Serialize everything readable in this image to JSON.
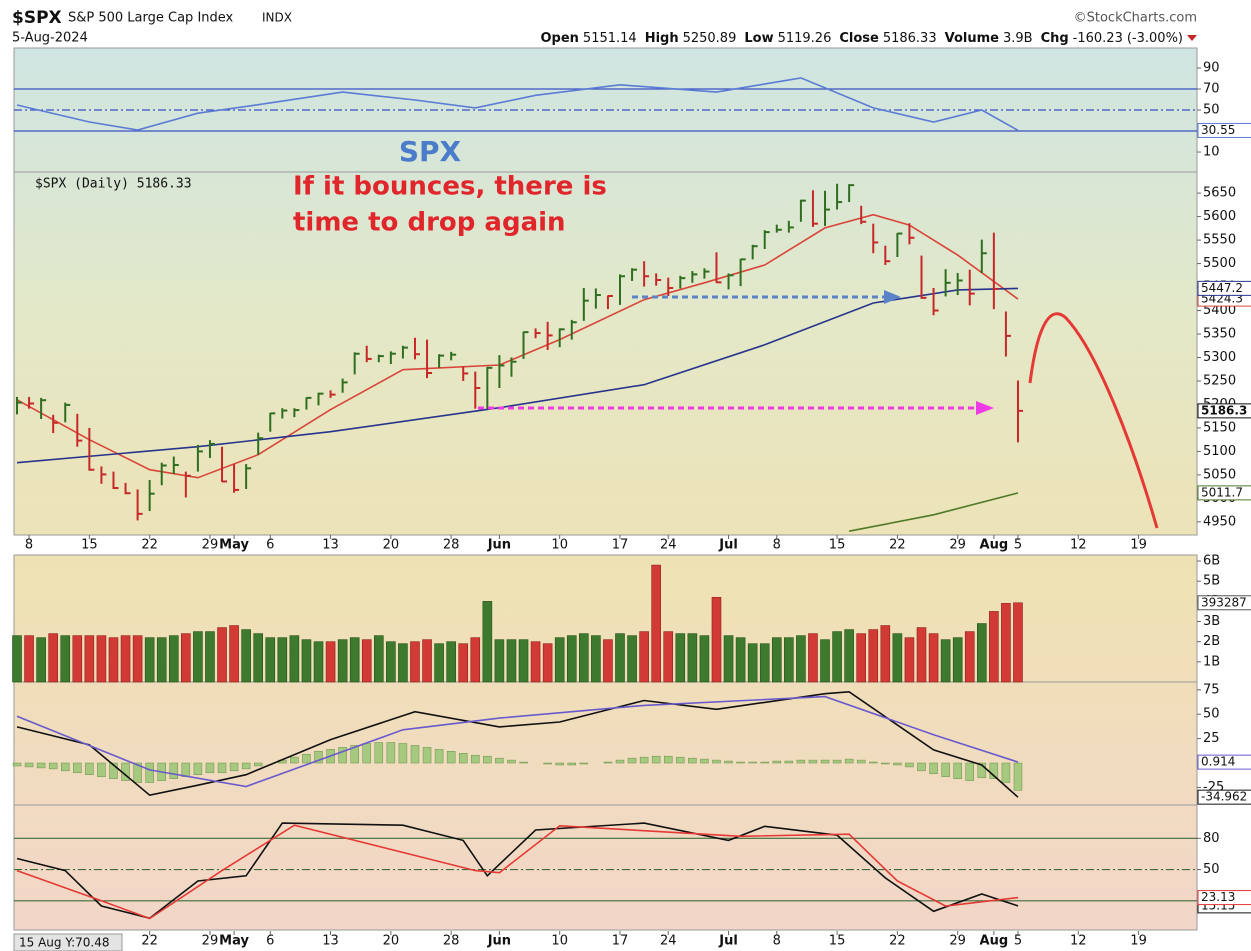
{
  "header": {
    "symbol": "$SPX",
    "name": "S&P 500 Large Cap Index",
    "exchange": "INDX",
    "source": "©StockCharts.com",
    "date": "5-Aug-2024",
    "open_label": "Open",
    "open": 5151.14,
    "high_label": "High",
    "high": 5250.89,
    "low_label": "Low",
    "low": 5119.26,
    "close_label": "Close",
    "close": 5186.33,
    "volume_label": "Volume",
    "volume": "3.9B",
    "chg_label": "Chg",
    "chg": -160.23,
    "chg_pct": "(-3.00%)"
  },
  "chart_data": [
    {
      "type": "line",
      "ylim": [
        -9,
        109
      ],
      "yticks": [
        10,
        50,
        70,
        90
      ],
      "levels": [
        {
          "value": 70,
          "style": "solid"
        },
        {
          "value": 30,
          "style": "solid"
        },
        {
          "value": 50,
          "style": "dashed"
        }
      ],
      "level_color": "#3b4fc4",
      "series": [
        {
          "color": "#5b7bd5",
          "last_label": "30.55",
          "x": [
            "2024-04-05",
            "2024-04-15",
            "2024-04-19",
            "2024-04-26",
            "2024-05-03",
            "2024-05-14",
            "2024-05-22",
            "2024-05-30",
            "2024-06-06",
            "2024-06-17",
            "2024-06-28",
            "2024-07-10",
            "2024-07-12",
            "2024-07-18",
            "2024-07-25",
            "2024-07-31",
            "2024-08-05"
          ],
          "values": [
            54.8,
            38.6,
            31,
            47,
            55,
            67,
            59.5,
            52,
            64,
            74,
            67,
            80.5,
            71,
            52,
            38.6,
            50,
            30.55
          ]
        }
      ]
    },
    {
      "type": "ohlc",
      "legend": "$SPX (Daily) 5186.33",
      "annotations": [
        "SPX",
        "If it bounces, there is",
        "time to drop again"
      ],
      "up_color": "#2f6e1f",
      "down_color": "#c62828",
      "last_label": "5186.3",
      "ylim": [
        4922,
        5695
      ],
      "yticks": [
        4950,
        5000,
        5050,
        5100,
        5150,
        5200,
        5250,
        5300,
        5350,
        5400,
        5450,
        5500,
        5550,
        5600,
        5650
      ],
      "x": [
        "2024-04-05",
        "2024-04-08",
        "2024-04-09",
        "2024-04-10",
        "2024-04-11",
        "2024-04-12",
        "2024-04-15",
        "2024-04-16",
        "2024-04-17",
        "2024-04-18",
        "2024-04-19",
        "2024-04-22",
        "2024-04-23",
        "2024-04-24",
        "2024-04-25",
        "2024-04-26",
        "2024-04-29",
        "2024-04-30",
        "2024-05-01",
        "2024-05-02",
        "2024-05-03",
        "2024-05-06",
        "2024-05-07",
        "2024-05-08",
        "2024-05-09",
        "2024-05-10",
        "2024-05-13",
        "2024-05-14",
        "2024-05-15",
        "2024-05-16",
        "2024-05-17",
        "2024-05-20",
        "2024-05-21",
        "2024-05-22",
        "2024-05-23",
        "2024-05-24",
        "2024-05-28",
        "2024-05-29",
        "2024-05-30",
        "2024-05-31",
        "2024-06-03",
        "2024-06-04",
        "2024-06-05",
        "2024-06-06",
        "2024-06-07",
        "2024-06-10",
        "2024-06-11",
        "2024-06-12",
        "2024-06-13",
        "2024-06-14",
        "2024-06-17",
        "2024-06-18",
        "2024-06-20",
        "2024-06-21",
        "2024-06-24",
        "2024-06-25",
        "2024-06-26",
        "2024-06-27",
        "2024-06-28",
        "2024-07-01",
        "2024-07-02",
        "2024-07-03",
        "2024-07-05",
        "2024-07-08",
        "2024-07-09",
        "2024-07-10",
        "2024-07-11",
        "2024-07-12",
        "2024-07-15",
        "2024-07-16",
        "2024-07-17",
        "2024-07-18",
        "2024-07-19",
        "2024-07-22",
        "2024-07-23",
        "2024-07-24",
        "2024-07-25",
        "2024-07-26",
        "2024-07-29",
        "2024-07-30",
        "2024-07-31",
        "2024-08-01",
        "2024-08-02",
        "2024-08-05"
      ],
      "high": [
        5216,
        5216,
        5214,
        5178,
        5204,
        5180,
        5150,
        5068,
        5057,
        5033,
        5019,
        5039,
        5076,
        5089,
        5057,
        5114,
        5124,
        5110,
        5073,
        5073,
        5140,
        5182,
        5192,
        5192,
        5215,
        5225,
        5230,
        5255,
        5311,
        5325,
        5306,
        5313,
        5325,
        5342,
        5338,
        5307,
        5312,
        5281,
        5270,
        5280,
        5305,
        5300,
        5355,
        5362,
        5376,
        5362,
        5380,
        5448,
        5447,
        5432,
        5477,
        5490,
        5505,
        5479,
        5470,
        5474,
        5484,
        5490,
        5524,
        5479,
        5510,
        5540,
        5571,
        5583,
        5591,
        5636,
        5656,
        5655,
        5670,
        5669,
        5623,
        5585,
        5538,
        5565,
        5586,
        5517,
        5448,
        5488,
        5480,
        5487,
        5551,
        5566,
        5398,
        5250.89
      ],
      "low": [
        5179,
        5191,
        5169,
        5139,
        5162,
        5110,
        5059,
        5031,
        5020,
        5009,
        4953,
        4973,
        5028,
        5052,
        5002,
        5057,
        5086,
        5035,
        5012,
        5020,
        5093,
        5142,
        5170,
        5173,
        5189,
        5198,
        5214,
        5225,
        5264,
        5290,
        5290,
        5286,
        5298,
        5296,
        5256,
        5278,
        5294,
        5250,
        5191,
        5191,
        5235,
        5259,
        5297,
        5341,
        5316,
        5322,
        5338,
        5378,
        5404,
        5403,
        5412,
        5463,
        5451,
        5453,
        5431,
        5447,
        5459,
        5468,
        5459,
        5445,
        5452,
        5509,
        5531,
        5566,
        5566,
        5589,
        5578,
        5580,
        5615,
        5631,
        5584,
        5522,
        5497,
        5514,
        5541,
        5425,
        5390,
        5430,
        5433,
        5411,
        5480,
        5403,
        5302,
        5119.26
      ],
      "close": [
        5204,
        5202,
        5209,
        5161,
        5199,
        5123,
        5061,
        5051,
        5022,
        5011,
        4967,
        5010,
        5070,
        5071,
        5048,
        5100,
        5116,
        5036,
        5018,
        5064,
        5128,
        5181,
        5187,
        5188,
        5214,
        5223,
        5221,
        5247,
        5308,
        5297,
        5303,
        5308,
        5321,
        5307,
        5267,
        5304,
        5306,
        5266,
        5235,
        5278,
        5283,
        5291,
        5354,
        5352,
        5347,
        5360,
        5375,
        5421,
        5433,
        5431,
        5473,
        5487,
        5473,
        5465,
        5448,
        5469,
        5477,
        5483,
        5460,
        5475,
        5509,
        5537,
        5567,
        5572,
        5577,
        5634,
        5585,
        5615,
        5631,
        5667,
        5589,
        5545,
        5505,
        5564,
        5555,
        5427,
        5400,
        5459,
        5464,
        5436,
        5522,
        5446,
        5346,
        5186.33
      ],
      "overlays": [
        {
          "color": "#d9453a",
          "last_label": "5424.3",
          "x": [
            "2024-04-05",
            "2024-04-15",
            "2024-04-22",
            "2024-04-26",
            "2024-05-03",
            "2024-05-13",
            "2024-05-21",
            "2024-06-03",
            "2024-06-10",
            "2024-06-20",
            "2024-06-27",
            "2024-07-05",
            "2024-07-12",
            "2024-07-18",
            "2024-07-23",
            "2024-07-29",
            "2024-08-05"
          ],
          "values": [
            5210,
            5125,
            5061,
            5044,
            5093,
            5189,
            5274,
            5284,
            5338,
            5423,
            5459,
            5497,
            5576,
            5604,
            5582,
            5518,
            5424.3
          ]
        },
        {
          "color": "#27348b",
          "last_label": "5447.2",
          "x": [
            "2024-04-05",
            "2024-04-26",
            "2024-05-13",
            "2024-06-03",
            "2024-06-20",
            "2024-07-05",
            "2024-07-18",
            "2024-07-29",
            "2024-08-05"
          ],
          "values": [
            5076,
            5110,
            5142,
            5193,
            5242,
            5327,
            5416,
            5444,
            5447.2
          ]
        },
        {
          "color": "#4f7a28",
          "last_label": "5011.7",
          "x": [
            "2024-07-16",
            "2024-07-25",
            "2024-08-05"
          ],
          "values": [
            4930,
            4965,
            5011.7
          ]
        }
      ],
      "xticks": [
        {
          "value": "2024-04-08",
          "label": "8"
        },
        {
          "value": "2024-04-15",
          "label": "15"
        },
        {
          "value": "2024-04-22",
          "label": "22"
        },
        {
          "value": "2024-04-29",
          "label": "29"
        },
        {
          "value": "2024-05-01",
          "label": "May"
        },
        {
          "value": "2024-05-06",
          "label": "6"
        },
        {
          "value": "2024-05-13",
          "label": "13"
        },
        {
          "value": "2024-05-20",
          "label": "20"
        },
        {
          "value": "2024-05-28",
          "label": "28"
        },
        {
          "value": "2024-06-03",
          "label": "Jun"
        },
        {
          "value": "2024-06-10",
          "label": "10"
        },
        {
          "value": "2024-06-17",
          "label": "17"
        },
        {
          "value": "2024-06-24",
          "label": "24"
        },
        {
          "value": "2024-07-01",
          "label": "Jul"
        },
        {
          "value": "2024-07-08",
          "label": "8"
        },
        {
          "value": "2024-07-15",
          "label": "15"
        },
        {
          "value": "2024-07-22",
          "label": "22"
        },
        {
          "value": "2024-07-29",
          "label": "29"
        },
        {
          "value": "2024-08-01",
          "label": "Aug"
        },
        {
          "value": "2024-08-05",
          "label": "5"
        },
        {
          "value": "2024-08-12",
          "label": "12"
        },
        {
          "value": "2024-08-19",
          "label": "19"
        }
      ]
    },
    {
      "type": "bar",
      "ylim": [
        0,
        6.3
      ],
      "yticks": [
        {
          "value": 1,
          "label": "1B"
        },
        {
          "value": 2,
          "label": "2B"
        },
        {
          "value": 3,
          "label": "3B"
        },
        {
          "value": 4,
          "label": "4B"
        },
        {
          "value": 5,
          "label": "5B"
        },
        {
          "value": 6,
          "label": "6B"
        }
      ],
      "last_label": "393287",
      "values": [
        2.3,
        2.3,
        2.2,
        2.4,
        2.3,
        2.3,
        2.3,
        2.3,
        2.2,
        2.3,
        2.3,
        2.2,
        2.2,
        2.3,
        2.4,
        2.5,
        2.5,
        2.7,
        2.8,
        2.6,
        2.4,
        2.2,
        2.2,
        2.3,
        2.1,
        2.0,
        2.0,
        2.1,
        2.2,
        2.1,
        2.3,
        2.0,
        1.9,
        2.0,
        2.1,
        1.9,
        2.0,
        1.9,
        2.2,
        4.0,
        2.1,
        2.1,
        2.1,
        2.0,
        1.9,
        2.2,
        2.3,
        2.4,
        2.3,
        2.1,
        2.4,
        2.3,
        2.5,
        5.8,
        2.5,
        2.4,
        2.4,
        2.3,
        4.2,
        2.3,
        2.2,
        1.9,
        1.9,
        2.2,
        2.2,
        2.3,
        2.4,
        2.1,
        2.5,
        2.6,
        2.4,
        2.6,
        2.8,
        2.4,
        2.2,
        2.7,
        2.4,
        2.1,
        2.2,
        2.5,
        2.9,
        3.5,
        3.9,
        3.93
      ]
    },
    {
      "type": "line",
      "ylim": [
        -43,
        83
      ],
      "yticks": [
        -25,
        25,
        50,
        75
      ],
      "histogram": {
        "color": "#a5c97e",
        "values": [
          -3,
          -4,
          -5,
          -6,
          -8,
          -10,
          -12,
          -14,
          -16,
          -18,
          -20,
          -20,
          -18,
          -16,
          -14,
          -12,
          -10,
          -10,
          -8,
          -6,
          -3,
          0,
          3,
          6,
          9,
          12,
          14,
          16,
          18,
          20,
          21,
          21,
          20,
          18,
          16,
          14,
          12,
          10,
          8,
          7,
          5,
          3,
          1,
          0,
          -1,
          -2,
          -2,
          -1,
          0,
          1,
          3,
          5,
          6,
          7,
          7,
          6,
          5,
          4,
          3,
          2,
          1,
          1,
          1,
          2,
          2,
          3,
          3,
          3,
          3,
          4,
          3,
          1,
          -1,
          -2,
          -4,
          -8,
          -11,
          -14,
          -16,
          -18,
          -15,
          -16,
          -20,
          -28
        ]
      },
      "series": [
        {
          "color": "#111111",
          "last_label": "-34.962",
          "x": [
            "2024-04-05",
            "2024-04-15",
            "2024-04-22",
            "2024-04-26",
            "2024-05-02",
            "2024-05-13",
            "2024-05-22",
            "2024-06-03",
            "2024-06-10",
            "2024-06-20",
            "2024-06-28",
            "2024-07-12",
            "2024-07-16",
            "2024-07-25",
            "2024-07-31",
            "2024-08-05"
          ],
          "values": [
            37,
            18.6,
            -33,
            -22.7,
            -12,
            24,
            52.6,
            37,
            42,
            64,
            55,
            71,
            73,
            13.4,
            -2,
            -34.962
          ]
        },
        {
          "color": "#6a5acd",
          "last_label": "0.914",
          "x": [
            "2024-04-05",
            "2024-04-22",
            "2024-05-02",
            "2024-05-21",
            "2024-06-03",
            "2024-06-20",
            "2024-07-12",
            "2024-07-25",
            "2024-08-05"
          ],
          "values": [
            48,
            -7,
            -24,
            34,
            46,
            59,
            68,
            29,
            0.914
          ]
        }
      ]
    },
    {
      "type": "line",
      "ylim": [
        -8,
        112
      ],
      "yticks": [
        50,
        80
      ],
      "overlay": "15 Aug Y:70.48",
      "levels": [
        {
          "value": 80,
          "style": "solid"
        },
        {
          "value": 20,
          "style": "solid"
        },
        {
          "value": 50,
          "style": "dashed"
        }
      ],
      "level_color": "#3c6b3c",
      "series": [
        {
          "color": "#111111",
          "last_label": "15.15",
          "x": [
            "2024-04-05",
            "2024-04-11",
            "2024-04-16",
            "2024-04-22",
            "2024-04-26",
            "2024-05-02",
            "2024-05-07",
            "2024-05-21",
            "2024-05-29",
            "2024-05-31",
            "2024-06-06",
            "2024-06-20",
            "2024-07-01",
            "2024-07-05",
            "2024-07-15",
            "2024-07-19",
            "2024-07-25",
            "2024-07-31",
            "2024-08-05"
          ],
          "values": [
            60.6,
            49,
            15,
            3.3,
            39,
            44,
            94.6,
            92.6,
            78,
            44,
            88,
            94.6,
            78,
            91.6,
            83,
            42,
            10,
            26.6,
            15.15
          ]
        },
        {
          "color": "#e53935",
          "last_label": "23.13",
          "x": [
            "2024-04-05",
            "2024-04-16",
            "2024-04-22",
            "2024-04-30",
            "2024-05-08",
            "2024-05-30",
            "2024-06-03",
            "2024-06-10",
            "2024-07-02",
            "2024-07-16",
            "2024-07-22",
            "2024-07-26",
            "2024-08-05"
          ],
          "values": [
            49,
            20,
            3,
            49,
            92.6,
            49,
            47,
            92,
            82,
            84,
            39,
            15,
            23.13
          ]
        }
      ],
      "xticks": [
        {
          "value": "2024-04-22",
          "label": "22"
        },
        {
          "value": "2024-04-29",
          "label": "29"
        },
        {
          "value": "2024-05-01",
          "label": "May"
        },
        {
          "value": "2024-05-06",
          "label": "6"
        },
        {
          "value": "2024-05-13",
          "label": "13"
        },
        {
          "value": "2024-05-20",
          "label": "20"
        },
        {
          "value": "2024-05-28",
          "label": "28"
        },
        {
          "value": "2024-06-03",
          "label": "Jun"
        },
        {
          "value": "2024-06-10",
          "label": "10"
        },
        {
          "value": "2024-06-17",
          "label": "17"
        },
        {
          "value": "2024-06-24",
          "label": "24"
        },
        {
          "value": "2024-07-01",
          "label": "Jul"
        },
        {
          "value": "2024-07-08",
          "label": "8"
        },
        {
          "value": "2024-07-15",
          "label": "15"
        },
        {
          "value": "2024-07-22",
          "label": "22"
        },
        {
          "value": "2024-07-29",
          "label": "29"
        },
        {
          "value": "2024-08-01",
          "label": "Aug"
        },
        {
          "value": "2024-08-05",
          "label": "5"
        },
        {
          "value": "2024-08-12",
          "label": "12"
        },
        {
          "value": "2024-08-19",
          "label": "19"
        }
      ]
    }
  ]
}
